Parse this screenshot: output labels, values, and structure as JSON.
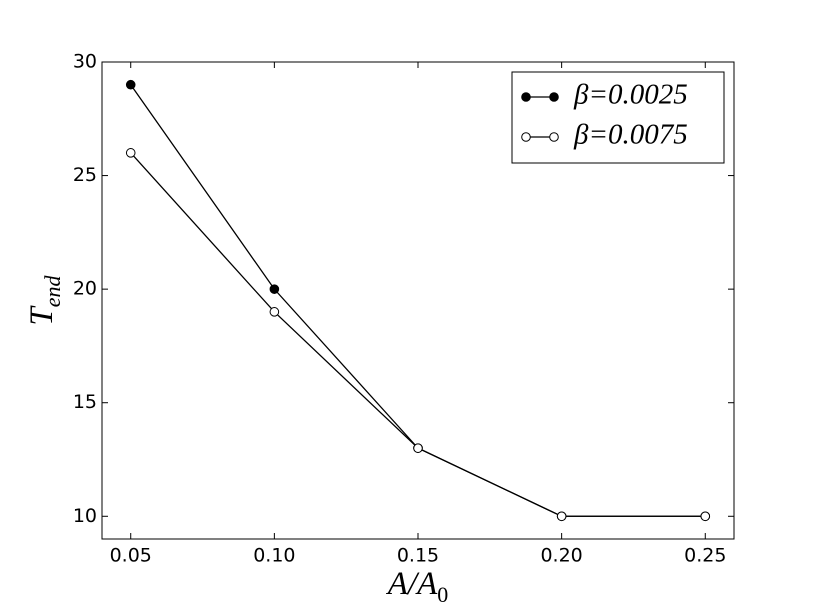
{
  "chart_data": {
    "type": "line",
    "xlabel": {
      "base": "A/A",
      "sub": "0"
    },
    "ylabel": {
      "base": "T",
      "sub": "end"
    },
    "x": [
      0.05,
      0.1,
      0.15,
      0.2,
      0.25
    ],
    "series": [
      {
        "name": "β=0.0025",
        "color": "#000000",
        "marker_fill": "#000000",
        "values": [
          29,
          20,
          13,
          10,
          10
        ]
      },
      {
        "name": "β=0.0075",
        "color": "#000000",
        "marker_fill": "#ffffff",
        "values": [
          26,
          19,
          13,
          10,
          10
        ]
      }
    ],
    "xlim": [
      0.04,
      0.26
    ],
    "xticks": [
      0.05,
      {
        "value": 0.1,
        "label": "0.10"
      },
      0.15,
      {
        "value": 0.2,
        "label": "0.20"
      },
      0.25
    ],
    "ylim": [
      9,
      30
    ],
    "yticks": [
      10,
      15,
      20,
      25,
      30
    ],
    "grid": false,
    "legend": "upper right"
  }
}
